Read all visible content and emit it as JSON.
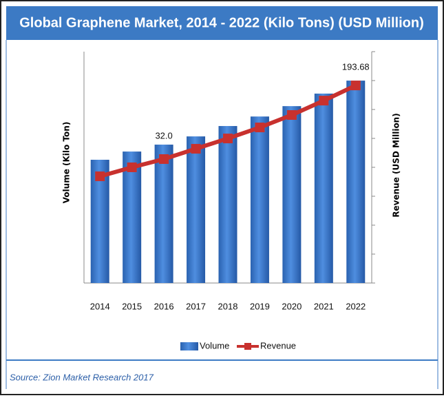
{
  "chart_data": {
    "type": "bar",
    "title": "Global Graphene Market, 2014 - 2022 (Kilo Tons) (USD Million)",
    "source": "Source: Zion Market Research 2017",
    "ylabel": "Volume (Kilo Ton)",
    "y2label": "Revenue (USD Million)",
    "categories": [
      "2014",
      "2015",
      "2016",
      "2017",
      "2018",
      "2019",
      "2020",
      "2021",
      "2022"
    ],
    "series": [
      {
        "name": "Volume",
        "type": "bar",
        "color": "#3a78c8",
        "values": [
          28.5,
          30.4,
          32.0,
          33.9,
          36.3,
          38.5,
          40.9,
          43.8,
          46.8
        ],
        "value_labels": [
          null,
          null,
          "32.0",
          null,
          null,
          null,
          null,
          null,
          null
        ]
      },
      {
        "name": "Revenue",
        "type": "line",
        "axis": "y2",
        "color": "#c8312e",
        "values": [
          104.6,
          113.4,
          121.5,
          131.6,
          141.7,
          152.5,
          164.7,
          178.8,
          193.68
        ]
      }
    ],
    "ylim": [
      0,
      53.5
    ],
    "y2lim": [
      0,
      226.8
    ],
    "y2ticks": [
      0,
      28.35,
      56.7,
      85.05,
      113.4,
      141.75,
      170.1,
      198.45,
      226.8
    ],
    "legend": "bottom"
  }
}
